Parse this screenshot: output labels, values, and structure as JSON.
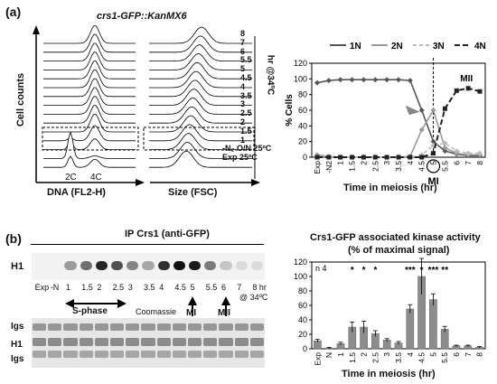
{
  "panel_a": {
    "label": "(a)",
    "strain": "crs1-GFP::KanMX6",
    "dna_axis": "DNA (FL2-H)",
    "size_axis": "Size (FSC)",
    "y_axis": "Cell counts",
    "peak_2c": "2C",
    "peak_4c": "4C",
    "time_axis_label": "hr @34ºC",
    "rows": [
      "8",
      "7",
      "6",
      "5.5",
      "5",
      "4.5",
      "4",
      "3.5",
      "3",
      "2.5",
      "2",
      "1.5",
      "1",
      "-N₂ O/N 25ºC",
      "Exp 25ºC"
    ]
  },
  "panel_b": {
    "label": "(b)",
    "ip_title": "IP Crs1 (anti-GFP)",
    "h1": "H1",
    "lanes": [
      "Exp",
      "-N",
      "1",
      "1.5",
      "2",
      "2.5",
      "3",
      "3.5",
      "4",
      "4.5",
      "5",
      "5.5",
      "6",
      "7",
      "8 hr"
    ],
    "temp": "@ 34ºC",
    "sphase": "S-phase",
    "coomassie": "Coomassie",
    "mi": "MI",
    "mii": "MII",
    "igs_top": "Igs",
    "h1_lower": "H1",
    "igs_bottom": "Igs",
    "band_intensity": [
      0,
      0,
      0.35,
      0.55,
      0.9,
      0.7,
      0.45,
      0.3,
      0.85,
      1,
      0.95,
      0.5,
      0.15,
      0.05,
      0.05
    ]
  },
  "chart_data": [
    {
      "type": "line",
      "ylabel": "% Cells",
      "xlabel": "Time in meiosis (hr)",
      "categories": [
        "Exp",
        "-N2",
        "1",
        "1.5",
        "2",
        "2.5",
        "3",
        "3.5",
        "4",
        "4.5",
        "5",
        "5.5",
        "6",
        "7",
        "8"
      ],
      "ylim": [
        0,
        120
      ],
      "yticks": [
        0,
        20,
        40,
        60,
        80,
        100,
        120
      ],
      "series": [
        {
          "name": "1N",
          "color": "#555555",
          "values": [
            95,
            98,
            99,
            99,
            99,
            99,
            99,
            99,
            98,
            60,
            20,
            8,
            4,
            2,
            2
          ]
        },
        {
          "name": "2N",
          "color": "#999999",
          "values": [
            3,
            1,
            0,
            0,
            0,
            0,
            0,
            0,
            1,
            35,
            60,
            12,
            5,
            3,
            3
          ]
        },
        {
          "name": "3N",
          "color": "#bbbbbb",
          "values": [
            1,
            1,
            0,
            0,
            0,
            0,
            0,
            0,
            0,
            3,
            15,
            18,
            8,
            5,
            5
          ]
        },
        {
          "name": "4N",
          "color": "#222222",
          "values": [
            0,
            0,
            0,
            0,
            0,
            0,
            0,
            0,
            0,
            0,
            5,
            62,
            85,
            88,
            84
          ]
        }
      ],
      "annotations": [
        "MI",
        "MII"
      ]
    },
    {
      "type": "bar",
      "title": "Crs1-GFP associated kinase activity",
      "subtitle": "(% of maximal signal)",
      "ylabel": "",
      "xlabel": "Time in meiosis (hr)",
      "n_label": "n 4",
      "categories": [
        "Exp",
        "N",
        "1",
        "1.5",
        "2",
        "2.5",
        "3",
        "3.5",
        "4",
        "4.5",
        "5",
        "5.5",
        "6",
        "7",
        "8"
      ],
      "values": [
        11,
        1,
        7,
        30,
        30,
        21,
        12,
        8,
        55,
        100,
        68,
        27,
        4,
        4,
        2
      ],
      "errors": [
        2,
        1,
        2,
        7,
        8,
        4,
        2,
        2,
        6,
        25,
        8,
        4,
        1,
        1,
        1
      ],
      "significance": [
        "",
        "",
        "",
        "*",
        "*",
        "*",
        "",
        "",
        "***",
        "*",
        "***",
        "**",
        "",
        "",
        ""
      ],
      "ylim": [
        0,
        120
      ],
      "yticks": [
        0,
        20,
        40,
        60,
        80,
        100,
        120
      ]
    }
  ]
}
